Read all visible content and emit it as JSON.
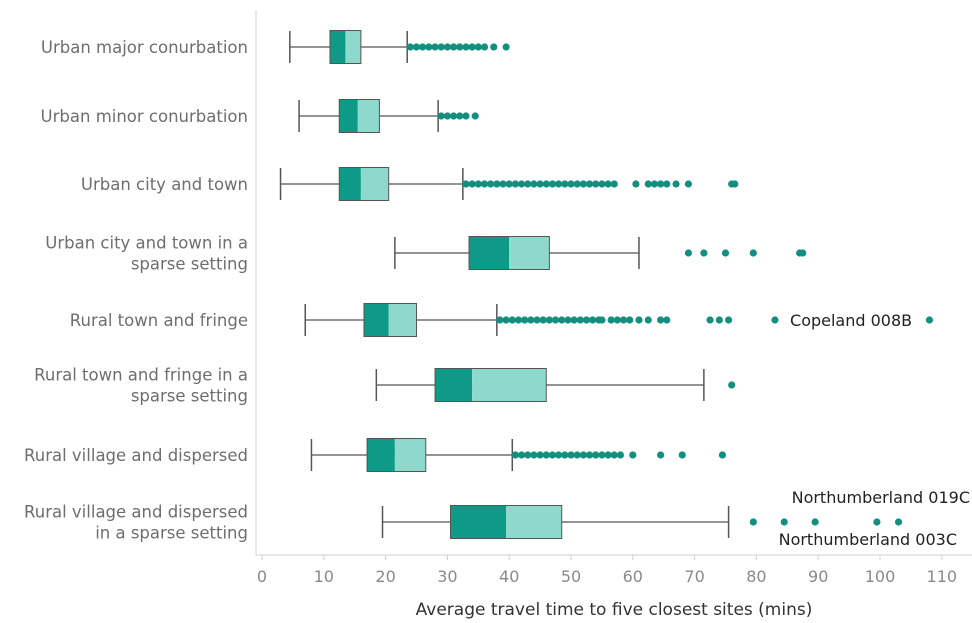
{
  "chart_data": {
    "type": "boxplot",
    "orientation": "horizontal",
    "xlabel": "Average travel time to five closest sites (mins)",
    "xlim": [
      0,
      110
    ],
    "xticks": [
      0,
      10,
      20,
      30,
      40,
      50,
      60,
      70,
      80,
      90,
      100,
      110
    ],
    "grid": false,
    "colors": {
      "box_lower": "#0e9a86",
      "box_upper": "#8fd9cc",
      "outlier": "#138f80",
      "whisker": "#555555",
      "axis": "#d0d0d0"
    },
    "categories": [
      {
        "label": [
          "Urban major conurbation"
        ],
        "whisker_low": 4.5,
        "q1": 11,
        "median": 13.5,
        "q3": 16,
        "whisker_high": 23.5,
        "outliers": [
          24,
          25,
          26,
          27,
          28,
          29,
          30,
          31,
          32,
          33,
          34,
          35,
          36,
          37.5,
          39.5
        ]
      },
      {
        "label": [
          "Urban minor conurbation"
        ],
        "whisker_low": 6,
        "q1": 12.5,
        "median": 15.5,
        "q3": 19,
        "whisker_high": 28.5,
        "outliers": [
          29,
          30,
          31,
          32,
          33,
          34.5
        ]
      },
      {
        "label": [
          "Urban city and town"
        ],
        "whisker_low": 3,
        "q1": 12.5,
        "median": 16,
        "q3": 20.5,
        "whisker_high": 32.5,
        "outliers": [
          33,
          34,
          35,
          36,
          37,
          38,
          39,
          40,
          41,
          42,
          43,
          44,
          45,
          46,
          47,
          48,
          49,
          50,
          51,
          52,
          53,
          54,
          55,
          56,
          57,
          60.5,
          62.5,
          63.5,
          64.5,
          65.5,
          67,
          69,
          76,
          76.5
        ]
      },
      {
        "label": [
          "Urban city and town in a",
          "sparse setting"
        ],
        "whisker_low": 21.5,
        "q1": 33.5,
        "median": 40,
        "q3": 46.5,
        "whisker_high": 61,
        "outliers": [
          69,
          71.5,
          75,
          79.5,
          87,
          87.5
        ]
      },
      {
        "label": [
          "Rural town and fringe"
        ],
        "whisker_low": 7,
        "q1": 16.5,
        "median": 20.5,
        "q3": 25,
        "whisker_high": 38,
        "outliers": [
          38.5,
          39.5,
          40.5,
          41.5,
          42.5,
          43.5,
          44.5,
          45.5,
          46.5,
          47.5,
          48.5,
          49.5,
          50.5,
          51.5,
          52.5,
          53.5,
          54.5,
          55,
          56.5,
          57.5,
          58.5,
          59.5,
          61,
          62.5,
          64.5,
          65.5,
          72.5,
          74,
          75.5,
          83,
          108
        ]
      },
      {
        "label": [
          "Rural town and fringe in a",
          "sparse setting"
        ],
        "whisker_low": 18.5,
        "q1": 28,
        "median": 34,
        "q3": 46,
        "whisker_high": 71.5,
        "outliers": [
          76
        ]
      },
      {
        "label": [
          "Rural village and dispersed"
        ],
        "whisker_low": 8,
        "q1": 17,
        "median": 21.5,
        "q3": 26.5,
        "whisker_high": 40.5,
        "outliers": [
          41,
          42,
          43,
          44,
          45,
          46,
          47,
          48,
          49,
          50,
          51,
          52,
          53,
          54,
          55,
          56,
          57,
          58,
          60,
          64.5,
          68,
          74.5
        ]
      },
      {
        "label": [
          "Rural village and dispersed",
          "in a sparse setting"
        ],
        "whisker_low": 19.5,
        "q1": 30.5,
        "median": 39.5,
        "q3": 48.5,
        "whisker_high": 75.5,
        "outliers": [
          79.5,
          84.5,
          89.5,
          99.5,
          103
        ]
      }
    ],
    "annotations": [
      {
        "text": "Copeland 008B",
        "category_index": 4,
        "position": "right of outlier",
        "x": 83.5
      },
      {
        "text": "Northumberland 019C",
        "category_index": 7,
        "position": "above"
      },
      {
        "text": "Northumberland 003C",
        "category_index": 7,
        "position": "below"
      }
    ]
  }
}
